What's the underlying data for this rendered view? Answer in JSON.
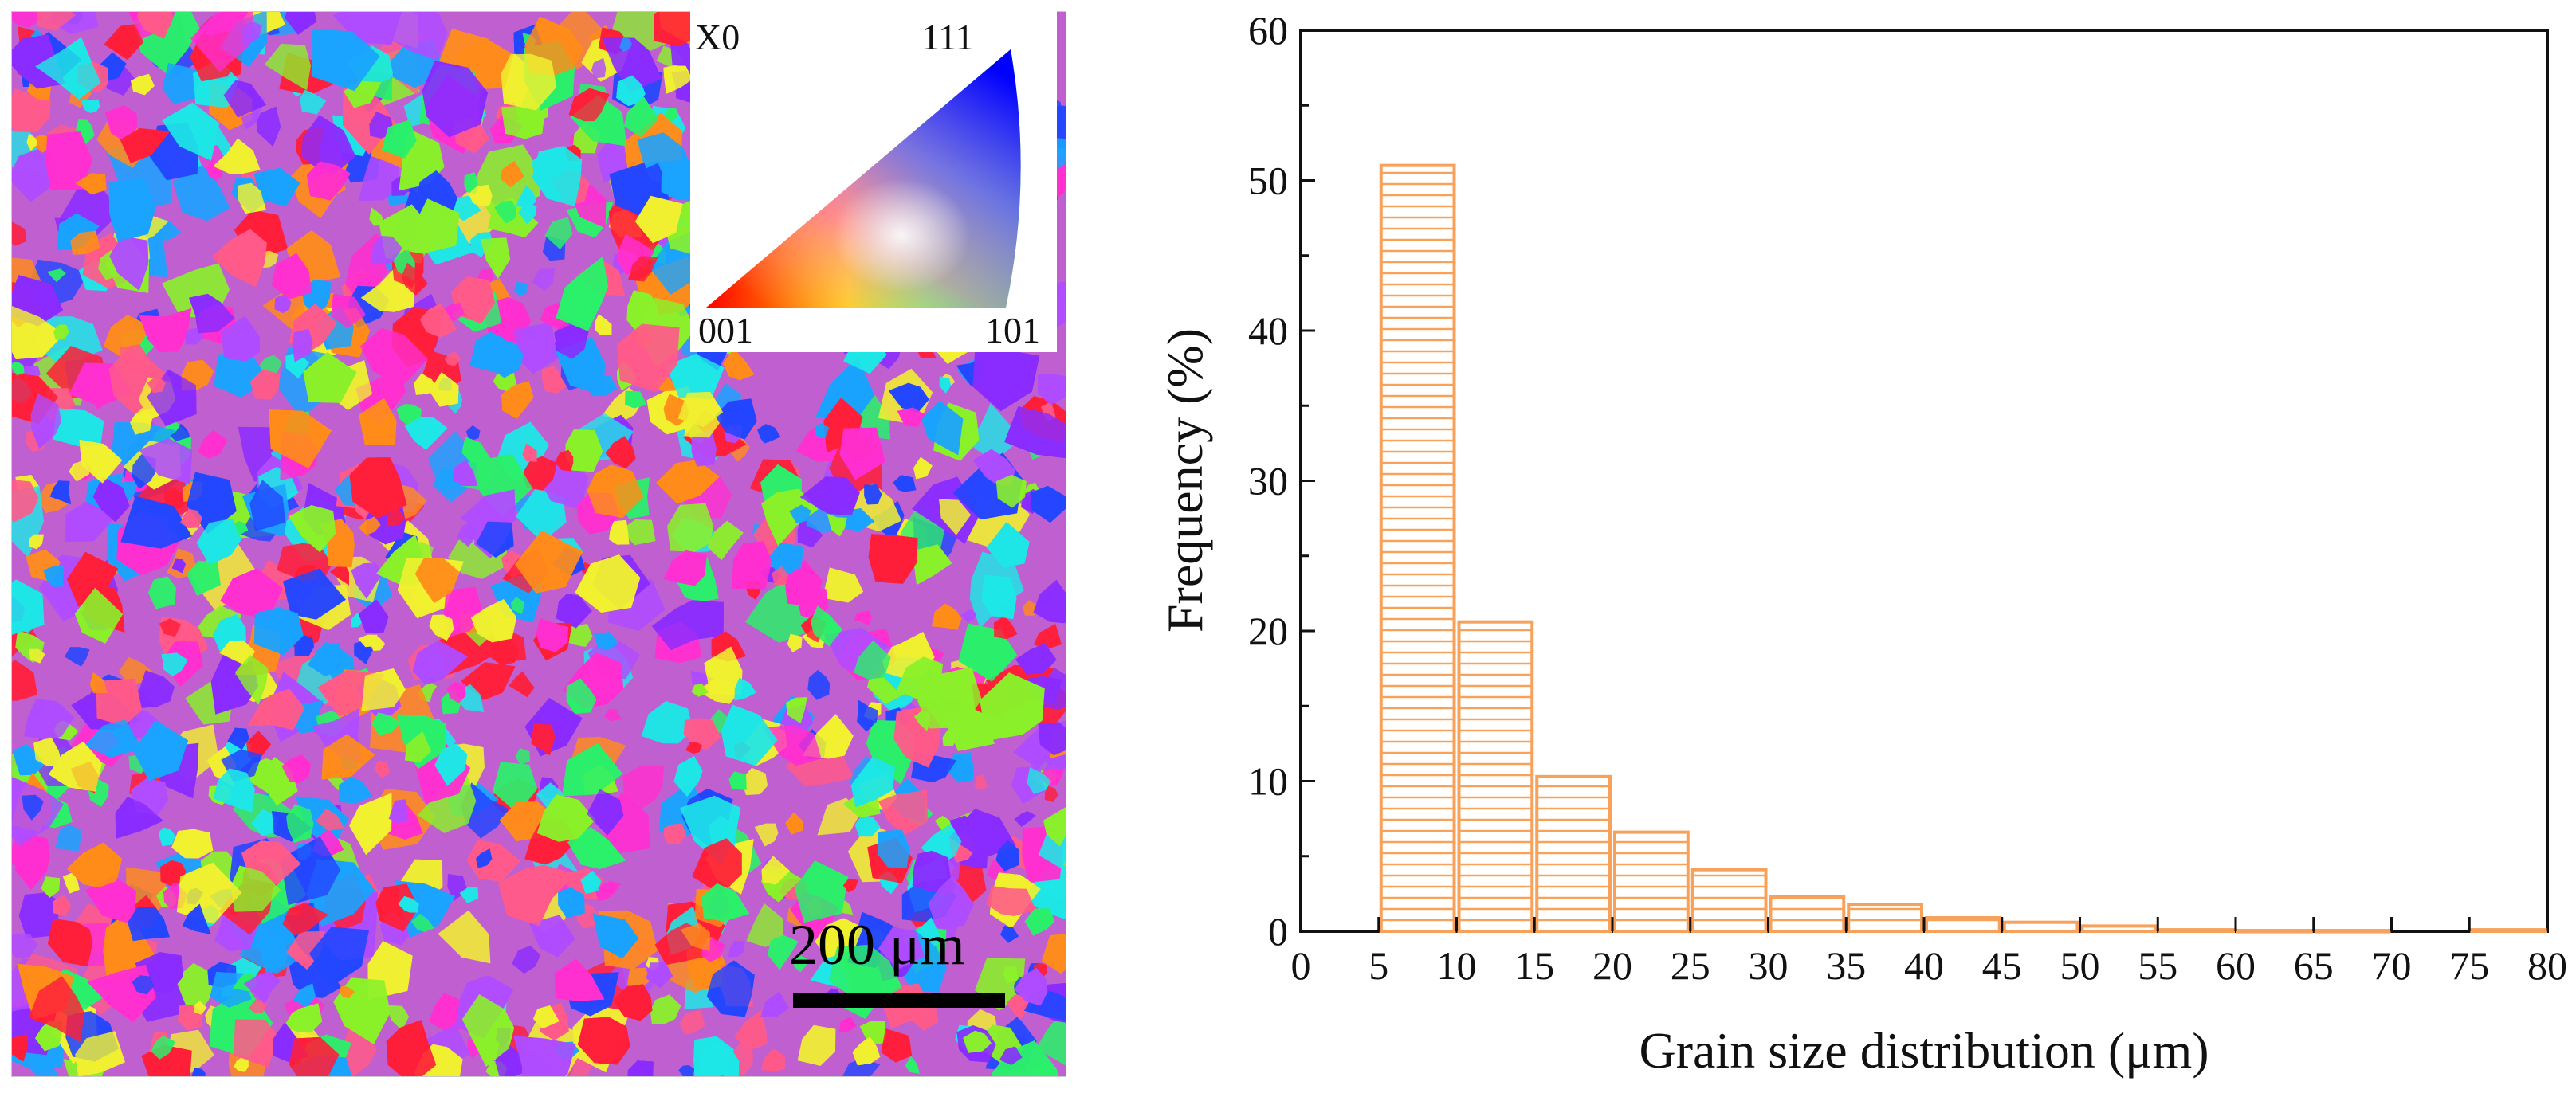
{
  "ipf_legend": {
    "direction_label": "X0",
    "corner_001": "001",
    "corner_111": "111",
    "corner_101": "101"
  },
  "scale_bar": {
    "label": "200 μm"
  },
  "colors": {
    "bar_stroke": "#F7A15A",
    "bar_hatch": "#F7A15A",
    "axis": "#111111",
    "map_palette": [
      "#ff1f3a",
      "#ff2fd0",
      "#8a2cff",
      "#2446ff",
      "#1ee6e6",
      "#2bef6a",
      "#8af02a",
      "#ff8c1a",
      "#f0f030",
      "#1aa3ff",
      "#ff5a8a",
      "#b04cff"
    ]
  },
  "chart_data": {
    "type": "bar",
    "title": "",
    "xlabel": "Grain size distribution  (μm)",
    "ylabel": "Frequency  (%)",
    "xlim": [
      0,
      80
    ],
    "ylim": [
      0,
      60
    ],
    "x_ticks": [
      "0",
      "5",
      "10",
      "15",
      "20",
      "25",
      "30",
      "35",
      "40",
      "45",
      "50",
      "55",
      "60",
      "65",
      "70",
      "75",
      "80"
    ],
    "y_ticks": [
      "0",
      "10",
      "20",
      "30",
      "40",
      "50",
      "60"
    ],
    "bin_width": 5,
    "bins": [
      {
        "start": 5,
        "value": 51.0
      },
      {
        "start": 10,
        "value": 20.6
      },
      {
        "start": 15,
        "value": 10.3
      },
      {
        "start": 20,
        "value": 6.6
      },
      {
        "start": 25,
        "value": 4.1
      },
      {
        "start": 30,
        "value": 2.3
      },
      {
        "start": 35,
        "value": 1.8
      },
      {
        "start": 40,
        "value": 0.9
      },
      {
        "start": 45,
        "value": 0.6
      },
      {
        "start": 50,
        "value": 0.35
      },
      {
        "start": 55,
        "value": 0.1
      },
      {
        "start": 60,
        "value": 0.05
      },
      {
        "start": 65,
        "value": 0.05
      },
      {
        "start": 75,
        "value": 0.1
      }
    ]
  }
}
